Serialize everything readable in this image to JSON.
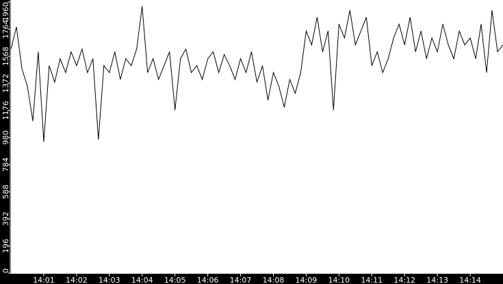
{
  "chart_data": {
    "type": "line",
    "title": "",
    "xlabel": "",
    "ylabel": "",
    "ylim": [
      0,
      1960
    ],
    "xlim": [
      "14:00:00",
      "14:15:00"
    ],
    "y_ticks": [
      "0",
      "196",
      "392",
      "588",
      "784",
      "980",
      "1176",
      "1372",
      "1568",
      "1764",
      "1960"
    ],
    "x_ticks": [
      "14:01",
      "14:02",
      "14:03",
      "14:04",
      "14:05",
      "14:06",
      "14:07",
      "14:08",
      "14:09",
      "14:10",
      "14:11",
      "14:12",
      "14:13",
      "14:14"
    ],
    "grid": false,
    "colors": {
      "background": "#000000",
      "plot": "#ffffff",
      "line": "#000000",
      "axis": "#ffffff"
    },
    "x": [
      "14:00:00",
      "14:00:10",
      "14:00:20",
      "14:00:30",
      "14:00:40",
      "14:00:50",
      "14:01:00",
      "14:01:10",
      "14:01:20",
      "14:01:30",
      "14:01:40",
      "14:01:50",
      "14:02:00",
      "14:02:10",
      "14:02:20",
      "14:02:30",
      "14:02:40",
      "14:02:50",
      "14:03:00",
      "14:03:10",
      "14:03:20",
      "14:03:30",
      "14:03:40",
      "14:03:50",
      "14:04:00",
      "14:04:10",
      "14:04:20",
      "14:04:30",
      "14:04:40",
      "14:04:50",
      "14:05:00",
      "14:05:10",
      "14:05:20",
      "14:05:30",
      "14:05:40",
      "14:05:50",
      "14:06:00",
      "14:06:10",
      "14:06:20",
      "14:06:30",
      "14:06:40",
      "14:06:50",
      "14:07:00",
      "14:07:10",
      "14:07:20",
      "14:07:30",
      "14:07:40",
      "14:07:50",
      "14:08:00",
      "14:08:10",
      "14:08:20",
      "14:08:30",
      "14:08:40",
      "14:08:50",
      "14:09:00",
      "14:09:10",
      "14:09:20",
      "14:09:30",
      "14:09:40",
      "14:09:50",
      "14:10:00",
      "14:10:10",
      "14:10:20",
      "14:10:30",
      "14:10:40",
      "14:10:50",
      "14:11:00",
      "14:11:10",
      "14:11:20",
      "14:11:30",
      "14:11:40",
      "14:11:50",
      "14:12:00",
      "14:12:10",
      "14:12:20",
      "14:12:30",
      "14:12:40",
      "14:12:50",
      "14:13:00",
      "14:13:10",
      "14:13:20",
      "14:13:30",
      "14:13:40",
      "14:13:50",
      "14:14:00",
      "14:14:10",
      "14:14:20",
      "14:14:30",
      "14:14:40",
      "14:14:50",
      "14:15:00"
    ],
    "values": [
      1620,
      1780,
      1480,
      1350,
      1100,
      1600,
      950,
      1500,
      1380,
      1550,
      1450,
      1600,
      1500,
      1620,
      1450,
      1550,
      965,
      1500,
      1450,
      1600,
      1400,
      1550,
      1500,
      1620,
      1930,
      1450,
      1550,
      1400,
      1500,
      1600,
      1180,
      1550,
      1620,
      1450,
      1500,
      1400,
      1550,
      1600,
      1450,
      1580,
      1500,
      1400,
      1550,
      1450,
      1600,
      1380,
      1500,
      1250,
      1450,
      1350,
      1200,
      1400,
      1300,
      1450,
      1750,
      1650,
      1850,
      1600,
      1750,
      1180,
      1800,
      1700,
      1900,
      1650,
      1750,
      1850,
      1500,
      1600,
      1450,
      1550,
      1700,
      1800,
      1650,
      1850,
      1600,
      1750,
      1550,
      1700,
      1600,
      1800,
      1650,
      1550,
      1750,
      1650,
      1700,
      1550,
      1800,
      1450,
      1900,
      1600,
      1650
    ]
  }
}
